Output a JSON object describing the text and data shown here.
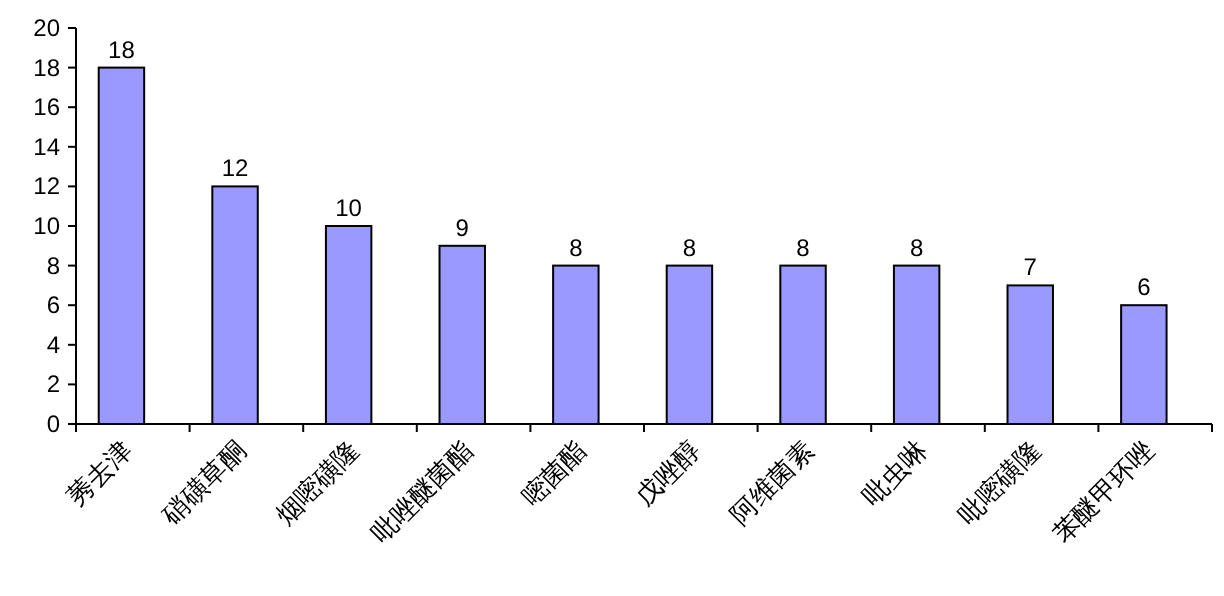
{
  "chart_data": {
    "type": "bar",
    "categories": [
      "莠去津",
      "硝磺草酮",
      "烟嘧磺隆",
      "吡唑醚菌酯",
      "嘧菌酯",
      "戊唑醇",
      "阿维菌素",
      "吡虫啉",
      "吡嘧磺隆",
      "苯醚甲环唑"
    ],
    "values": [
      18,
      12,
      10,
      9,
      8,
      8,
      8,
      8,
      7,
      6
    ],
    "color": "#9999ff",
    "ylim": [
      0,
      20
    ],
    "yticks": [
      0,
      2,
      4,
      6,
      8,
      10,
      12,
      14,
      16,
      18,
      20
    ],
    "data_labels": true,
    "grid": false
  }
}
